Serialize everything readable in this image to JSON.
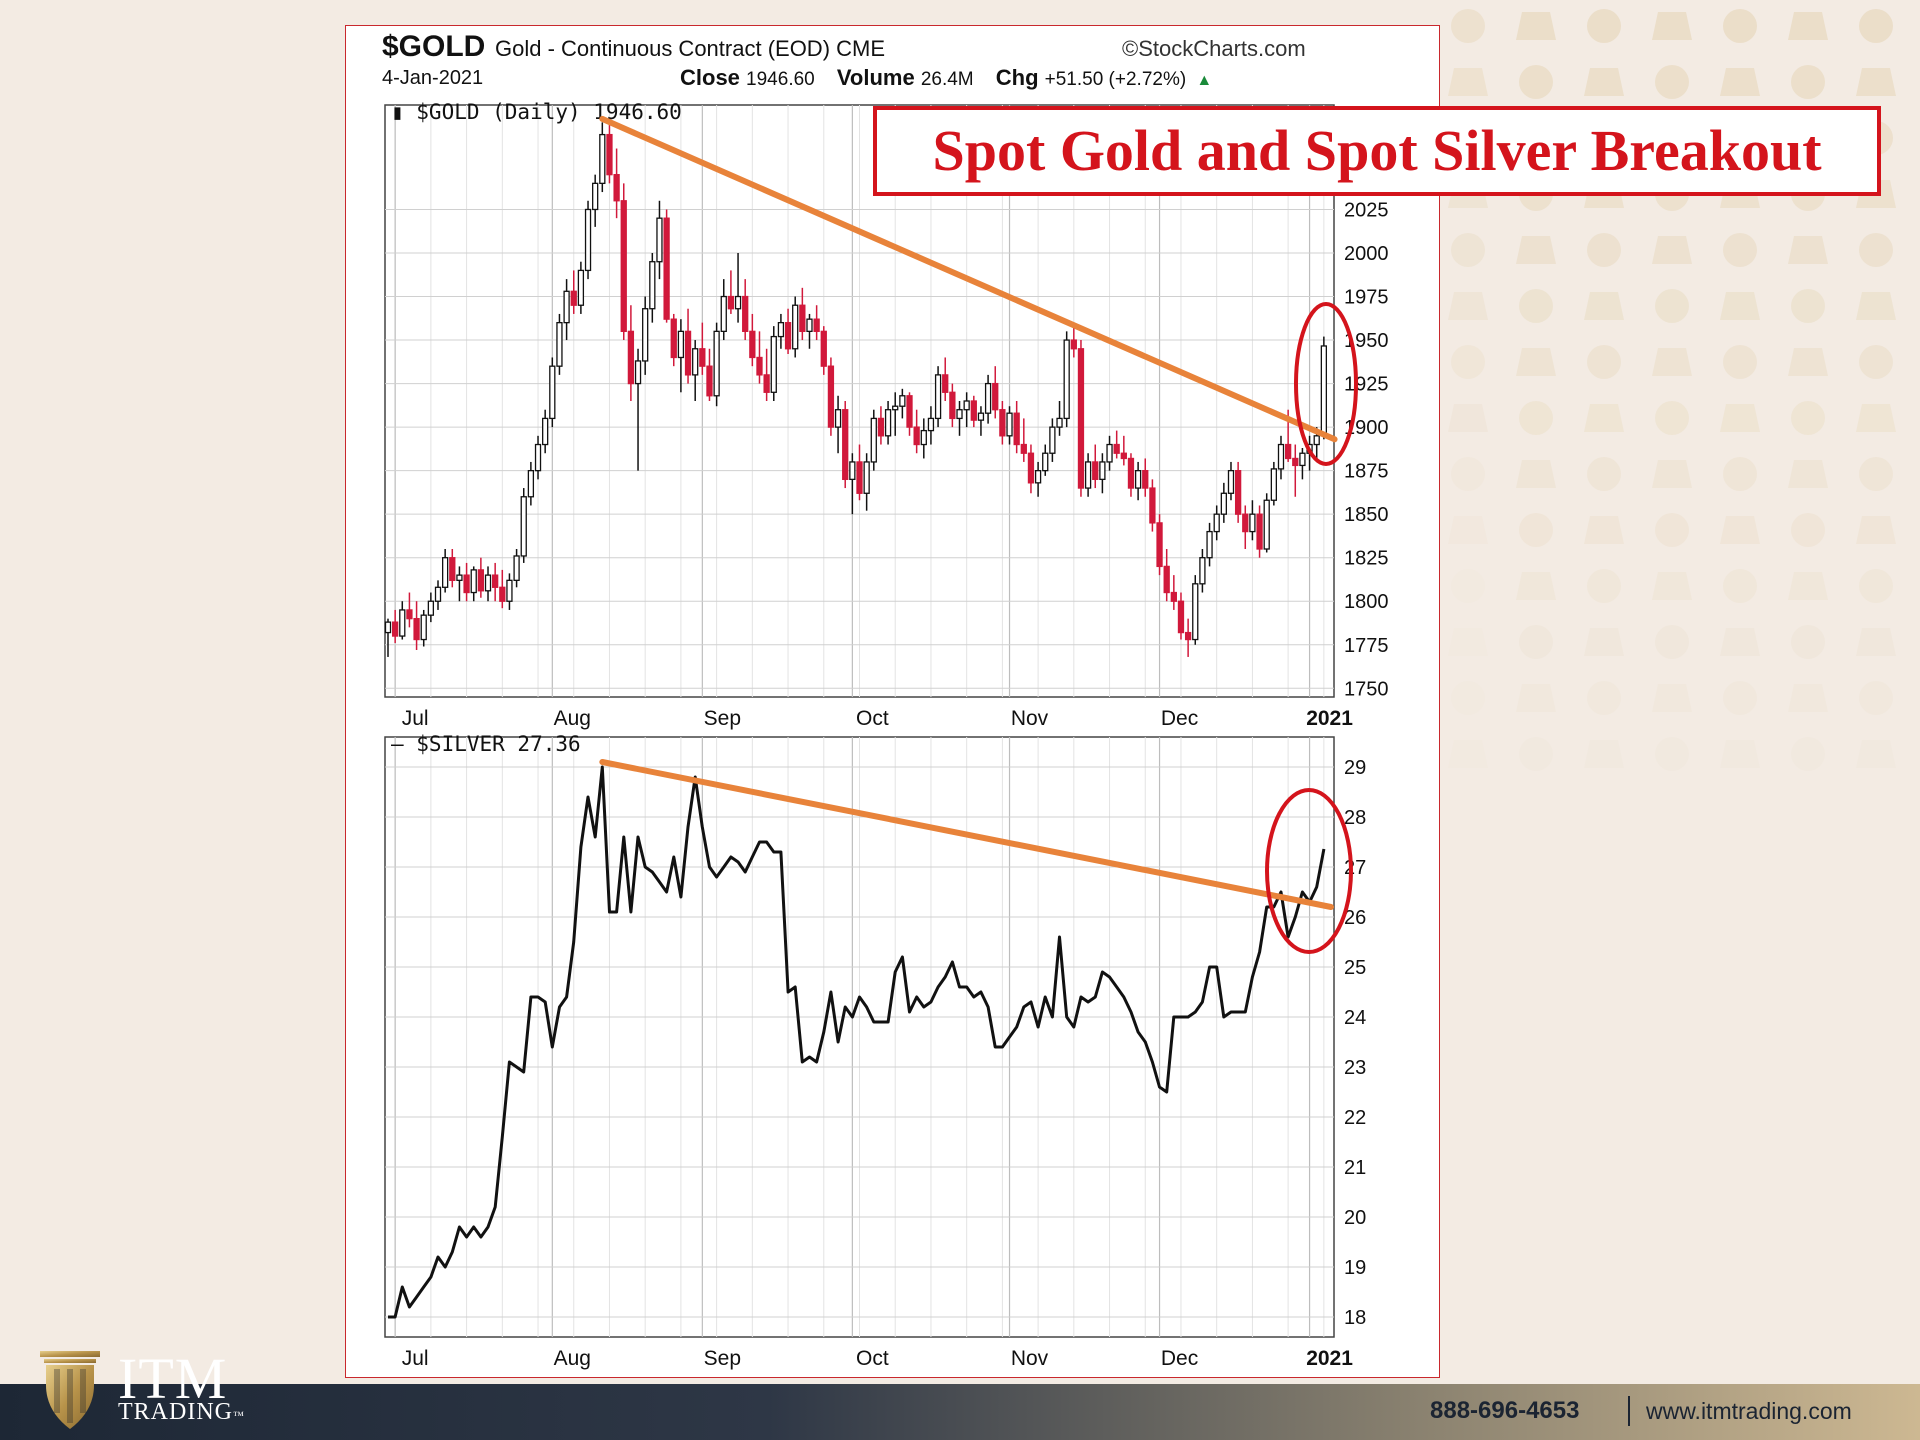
{
  "header": {
    "symbol": "$GOLD",
    "description": "Gold - Continuous Contract (EOD)",
    "exchange": "CME",
    "watermark": "StockCharts.com",
    "date": "4-Jan-2021",
    "close_label": "Close",
    "close_value": "1946.60",
    "volume_label": "Volume",
    "volume_value": "26.4M",
    "chg_label": "Chg",
    "chg_value": "+51.50 (+2.72%)"
  },
  "banner": {
    "text": "Spot Gold and Spot Silver Breakout"
  },
  "colors": {
    "up": "#111111",
    "down": "#d1193b",
    "trendline": "#e8833a",
    "circle": "#d4141c",
    "grid": "#cfcfcf"
  },
  "chart_data": [
    {
      "type": "candlestick",
      "legend": "$GOLD (Daily) 1946.60",
      "x_labels": [
        "Jul",
        "Aug",
        "Sep",
        "Oct",
        "Nov",
        "Dec",
        "2021"
      ],
      "y_ticks": [
        1750,
        1775,
        1800,
        1825,
        1850,
        1875,
        1900,
        1925,
        1950,
        1975,
        2000,
        2025
      ],
      "ylim": [
        1745,
        2085
      ],
      "xlim": [
        0,
        132
      ],
      "grid": true,
      "candles": [
        [
          0,
          1782,
          1790,
          1768,
          1788
        ],
        [
          1,
          1788,
          1795,
          1776,
          1780
        ],
        [
          2,
          1780,
          1800,
          1778,
          1795
        ],
        [
          3,
          1795,
          1805,
          1785,
          1790
        ],
        [
          4,
          1790,
          1800,
          1772,
          1778
        ],
        [
          5,
          1778,
          1795,
          1774,
          1792
        ],
        [
          6,
          1792,
          1805,
          1788,
          1800
        ],
        [
          7,
          1800,
          1812,
          1795,
          1808
        ],
        [
          8,
          1808,
          1830,
          1805,
          1825
        ],
        [
          9,
          1825,
          1830,
          1808,
          1812
        ],
        [
          10,
          1812,
          1820,
          1800,
          1815
        ],
        [
          11,
          1815,
          1822,
          1800,
          1805
        ],
        [
          12,
          1805,
          1820,
          1800,
          1818
        ],
        [
          13,
          1818,
          1825,
          1802,
          1806
        ],
        [
          14,
          1806,
          1820,
          1800,
          1815
        ],
        [
          15,
          1815,
          1822,
          1800,
          1808
        ],
        [
          16,
          1808,
          1818,
          1796,
          1800
        ],
        [
          17,
          1800,
          1816,
          1795,
          1812
        ],
        [
          18,
          1812,
          1830,
          1808,
          1826
        ],
        [
          19,
          1826,
          1865,
          1822,
          1860
        ],
        [
          20,
          1860,
          1880,
          1855,
          1875
        ],
        [
          21,
          1875,
          1895,
          1870,
          1890
        ],
        [
          22,
          1890,
          1910,
          1885,
          1905
        ],
        [
          23,
          1905,
          1940,
          1900,
          1935
        ],
        [
          24,
          1935,
          1965,
          1930,
          1960
        ],
        [
          25,
          1960,
          1985,
          1950,
          1978
        ],
        [
          26,
          1978,
          1990,
          1965,
          1970
        ],
        [
          27,
          1970,
          1995,
          1965,
          1990
        ],
        [
          28,
          1990,
          2030,
          1985,
          2025
        ],
        [
          29,
          2025,
          2045,
          2015,
          2040
        ],
        [
          30,
          2040,
          2075,
          2035,
          2068
        ],
        [
          31,
          2068,
          2077,
          2040,
          2045
        ],
        [
          32,
          2045,
          2060,
          2020,
          2030
        ],
        [
          33,
          2030,
          2040,
          1950,
          1955
        ],
        [
          34,
          1955,
          1970,
          1915,
          1925
        ],
        [
          35,
          1925,
          1945,
          1875,
          1938
        ],
        [
          36,
          1938,
          1975,
          1930,
          1968
        ],
        [
          37,
          1968,
          2000,
          1960,
          1995
        ],
        [
          38,
          1995,
          2030,
          1985,
          2020
        ],
        [
          39,
          2020,
          2025,
          1960,
          1962
        ],
        [
          40,
          1962,
          1965,
          1935,
          1940
        ],
        [
          41,
          1940,
          1962,
          1920,
          1955
        ],
        [
          42,
          1955,
          1968,
          1925,
          1930
        ],
        [
          43,
          1930,
          1950,
          1915,
          1945
        ],
        [
          44,
          1945,
          1960,
          1930,
          1935
        ],
        [
          45,
          1935,
          1945,
          1915,
          1918
        ],
        [
          46,
          1918,
          1960,
          1912,
          1955
        ],
        [
          47,
          1955,
          1985,
          1950,
          1975
        ],
        [
          48,
          1975,
          1990,
          1965,
          1968
        ],
        [
          49,
          1968,
          2000,
          1960,
          1975
        ],
        [
          50,
          1975,
          1985,
          1950,
          1955
        ],
        [
          51,
          1955,
          1965,
          1935,
          1940
        ],
        [
          52,
          1940,
          1955,
          1925,
          1930
        ],
        [
          53,
          1930,
          1945,
          1915,
          1920
        ],
        [
          54,
          1920,
          1958,
          1915,
          1952
        ],
        [
          55,
          1952,
          1965,
          1945,
          1960
        ],
        [
          56,
          1960,
          1968,
          1942,
          1945
        ],
        [
          57,
          1945,
          1975,
          1940,
          1970
        ],
        [
          58,
          1970,
          1980,
          1950,
          1955
        ],
        [
          59,
          1955,
          1965,
          1945,
          1962
        ],
        [
          60,
          1962,
          1970,
          1950,
          1955
        ],
        [
          61,
          1955,
          1958,
          1930,
          1935
        ],
        [
          62,
          1935,
          1940,
          1895,
          1900
        ],
        [
          63,
          1900,
          1918,
          1885,
          1910
        ],
        [
          64,
          1910,
          1915,
          1865,
          1870
        ],
        [
          65,
          1870,
          1885,
          1850,
          1880
        ],
        [
          66,
          1880,
          1890,
          1858,
          1862
        ],
        [
          67,
          1862,
          1885,
          1852,
          1880
        ],
        [
          68,
          1880,
          1910,
          1875,
          1905
        ],
        [
          69,
          1905,
          1912,
          1890,
          1895
        ],
        [
          70,
          1895,
          1915,
          1890,
          1910
        ],
        [
          71,
          1910,
          1920,
          1895,
          1912
        ],
        [
          72,
          1912,
          1922,
          1905,
          1918
        ],
        [
          73,
          1918,
          1920,
          1895,
          1900
        ],
        [
          74,
          1900,
          1910,
          1885,
          1890
        ],
        [
          75,
          1890,
          1905,
          1882,
          1898
        ],
        [
          76,
          1898,
          1912,
          1890,
          1905
        ],
        [
          77,
          1905,
          1935,
          1900,
          1930
        ],
        [
          78,
          1930,
          1940,
          1915,
          1920
        ],
        [
          79,
          1920,
          1925,
          1900,
          1905
        ],
        [
          80,
          1905,
          1915,
          1895,
          1910
        ],
        [
          81,
          1910,
          1920,
          1900,
          1915
        ],
        [
          82,
          1915,
          1918,
          1900,
          1904
        ],
        [
          83,
          1904,
          1912,
          1895,
          1908
        ],
        [
          84,
          1908,
          1930,
          1902,
          1925
        ],
        [
          85,
          1925,
          1935,
          1905,
          1910
        ],
        [
          86,
          1910,
          1915,
          1890,
          1895
        ],
        [
          87,
          1895,
          1912,
          1890,
          1908
        ],
        [
          88,
          1908,
          1915,
          1885,
          1890
        ],
        [
          89,
          1890,
          1905,
          1880,
          1885
        ],
        [
          90,
          1885,
          1890,
          1862,
          1868
        ],
        [
          91,
          1868,
          1880,
          1860,
          1875
        ],
        [
          92,
          1875,
          1890,
          1872,
          1885
        ],
        [
          93,
          1885,
          1905,
          1880,
          1900
        ],
        [
          94,
          1900,
          1915,
          1895,
          1905
        ],
        [
          95,
          1905,
          1955,
          1900,
          1950
        ],
        [
          96,
          1950,
          1960,
          1940,
          1945
        ],
        [
          97,
          1945,
          1950,
          1860,
          1865
        ],
        [
          98,
          1865,
          1885,
          1860,
          1880
        ],
        [
          99,
          1880,
          1890,
          1865,
          1870
        ],
        [
          100,
          1870,
          1885,
          1862,
          1880
        ],
        [
          101,
          1880,
          1895,
          1875,
          1890
        ],
        [
          102,
          1890,
          1898,
          1882,
          1885
        ],
        [
          103,
          1885,
          1895,
          1878,
          1882
        ],
        [
          104,
          1882,
          1885,
          1860,
          1865
        ],
        [
          105,
          1865,
          1880,
          1858,
          1875
        ],
        [
          106,
          1875,
          1882,
          1860,
          1865
        ],
        [
          107,
          1865,
          1870,
          1840,
          1845
        ],
        [
          108,
          1845,
          1850,
          1815,
          1820
        ],
        [
          109,
          1820,
          1830,
          1800,
          1805
        ],
        [
          110,
          1805,
          1815,
          1795,
          1800
        ],
        [
          111,
          1800,
          1805,
          1778,
          1782
        ],
        [
          112,
          1782,
          1790,
          1768,
          1778
        ],
        [
          113,
          1778,
          1815,
          1775,
          1810
        ],
        [
          114,
          1810,
          1830,
          1805,
          1825
        ],
        [
          115,
          1825,
          1845,
          1820,
          1840
        ],
        [
          116,
          1840,
          1855,
          1835,
          1850
        ],
        [
          117,
          1850,
          1868,
          1845,
          1862
        ],
        [
          118,
          1862,
          1880,
          1858,
          1875
        ],
        [
          119,
          1875,
          1880,
          1845,
          1850
        ],
        [
          120,
          1850,
          1855,
          1830,
          1840
        ],
        [
          121,
          1840,
          1858,
          1835,
          1850
        ],
        [
          122,
          1850,
          1855,
          1825,
          1830
        ],
        [
          123,
          1830,
          1862,
          1828,
          1858
        ],
        [
          124,
          1858,
          1880,
          1855,
          1876
        ],
        [
          125,
          1876,
          1895,
          1870,
          1890
        ],
        [
          126,
          1890,
          1910,
          1880,
          1882
        ],
        [
          127,
          1882,
          1890,
          1860,
          1878
        ],
        [
          128,
          1878,
          1888,
          1870,
          1885
        ],
        [
          129,
          1885,
          1895,
          1875,
          1890
        ],
        [
          130,
          1890,
          1900,
          1880,
          1895
        ],
        [
          131,
          1895,
          1952,
          1893,
          1946.6
        ]
      ]
    },
    {
      "type": "line",
      "legend": "$SILVER 27.36",
      "x_labels": [
        "Jul",
        "Aug",
        "Sep",
        "Oct",
        "Nov",
        "Dec",
        "2021"
      ],
      "y_ticks": [
        18,
        19,
        20,
        21,
        22,
        23,
        24,
        25,
        26,
        27,
        28,
        29
      ],
      "ylim": [
        17.6,
        29.6
      ],
      "xlim": [
        0,
        132
      ],
      "grid": true,
      "series": [
        {
          "name": "$SILVER",
          "values": [
            18.0,
            18.0,
            18.6,
            18.2,
            18.4,
            18.6,
            18.8,
            19.2,
            19.0,
            19.3,
            19.8,
            19.6,
            19.8,
            19.6,
            19.8,
            20.2,
            21.6,
            23.1,
            23.0,
            22.9,
            24.4,
            24.4,
            24.3,
            23.4,
            24.2,
            24.4,
            25.5,
            27.4,
            28.4,
            27.6,
            29.0,
            26.1,
            26.1,
            27.6,
            26.1,
            27.6,
            27.0,
            26.9,
            26.7,
            26.5,
            27.2,
            26.4,
            27.8,
            28.8,
            27.8,
            27.0,
            26.8,
            27.0,
            27.2,
            27.1,
            26.9,
            27.2,
            27.5,
            27.5,
            27.3,
            27.3,
            24.5,
            24.6,
            23.1,
            23.2,
            23.1,
            23.7,
            24.5,
            23.5,
            24.2,
            24.0,
            24.4,
            24.2,
            23.9,
            23.9,
            23.9,
            24.9,
            25.2,
            24.1,
            24.4,
            24.2,
            24.3,
            24.6,
            24.8,
            25.1,
            24.6,
            24.6,
            24.4,
            24.5,
            24.2,
            23.4,
            23.4,
            23.6,
            23.8,
            24.2,
            24.3,
            23.8,
            24.4,
            24.0,
            25.6,
            24.0,
            23.8,
            24.4,
            24.3,
            24.4,
            24.9,
            24.8,
            24.6,
            24.4,
            24.1,
            23.7,
            23.5,
            23.1,
            22.6,
            22.5,
            24.0,
            24.0,
            24.0,
            24.1,
            24.3,
            25.0,
            25.0,
            24.0,
            24.1,
            24.1,
            24.1,
            24.8,
            25.3,
            26.2,
            26.2,
            26.5,
            25.6,
            26.0,
            26.5,
            26.3,
            26.6,
            27.36
          ]
        }
      ]
    }
  ]
}
